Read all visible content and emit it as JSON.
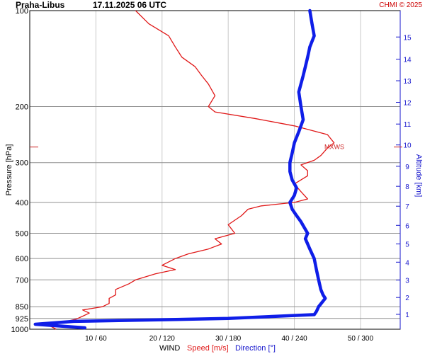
{
  "header": {
    "station": "Praha-Libus",
    "datetime": "17.11.2025 06 UTC",
    "copyright": "CHMI © 2025"
  },
  "colors": {
    "speed": "#e01818",
    "direction": "#0f1ee8",
    "altitude_axis": "#1515cc",
    "grid": "#c8c8c8",
    "pressure_grid": "#909090"
  },
  "labels": {
    "wind": "WIND",
    "speed": "Speed [m/s]",
    "direction": "Direction [°]",
    "pressure": "Pressure [hPa]",
    "altitude": "Altitude [km]",
    "mxws": "MXWS"
  },
  "chart_data": {
    "type": "line",
    "title": "Praha-Libus 17.11.2025 06 UTC",
    "y_axis": {
      "label": "Pressure [hPa]",
      "scale": "log",
      "range": [
        1000,
        100
      ],
      "ticks": [
        100,
        200,
        300,
        400,
        500,
        600,
        700,
        850,
        925,
        1000
      ]
    },
    "y2_axis": {
      "label": "Altitude [km]",
      "ticks": [
        1,
        2,
        3,
        4,
        5,
        6,
        7,
        8,
        9,
        10,
        11,
        12,
        13,
        14,
        15
      ],
      "tick_pressures": [
        898,
        795,
        701,
        616,
        540,
        472,
        411,
        356,
        308,
        264,
        227,
        194,
        166,
        142,
        121
      ]
    },
    "x_axis": {
      "label": "WIND",
      "speed_range": [
        0,
        56
      ],
      "direction_range": [
        0,
        336
      ],
      "tick_labels": [
        "10 / 60",
        "20 / 120",
        "30 / 180",
        "40 / 240",
        "50 / 300"
      ]
    },
    "grid": true,
    "mxws_pressure": 268,
    "series": [
      {
        "name": "Speed [m/s]",
        "units": "m/s",
        "points": [
          [
            1000,
            4
          ],
          [
            975,
            3
          ],
          [
            950,
            5
          ],
          [
            930,
            7
          ],
          [
            910,
            8
          ],
          [
            890,
            9
          ],
          [
            870,
            8
          ],
          [
            850,
            11
          ],
          [
            830,
            12
          ],
          [
            800,
            12
          ],
          [
            780,
            13
          ],
          [
            750,
            13
          ],
          [
            720,
            15
          ],
          [
            700,
            16
          ],
          [
            670,
            19
          ],
          [
            650,
            22
          ],
          [
            630,
            20
          ],
          [
            600,
            22
          ],
          [
            580,
            24
          ],
          [
            560,
            27
          ],
          [
            540,
            29
          ],
          [
            520,
            28
          ],
          [
            500,
            31
          ],
          [
            470,
            30
          ],
          [
            440,
            32
          ],
          [
            420,
            33
          ],
          [
            410,
            35
          ],
          [
            400,
            40
          ],
          [
            390,
            42
          ],
          [
            370,
            41
          ],
          [
            350,
            40
          ],
          [
            330,
            42
          ],
          [
            318,
            42
          ],
          [
            305,
            41
          ],
          [
            295,
            43
          ],
          [
            285,
            44
          ],
          [
            270,
            45
          ],
          [
            260,
            46
          ],
          [
            245,
            45
          ],
          [
            230,
            40
          ],
          [
            218,
            34
          ],
          [
            208,
            28
          ],
          [
            200,
            27
          ],
          [
            185,
            28
          ],
          [
            170,
            27
          ],
          [
            160,
            26
          ],
          [
            150,
            25
          ],
          [
            140,
            23
          ],
          [
            130,
            22
          ],
          [
            120,
            21
          ],
          [
            110,
            18
          ],
          [
            100,
            16
          ]
        ]
      },
      {
        "name": "Direction [°]",
        "units": "deg",
        "points": [
          [
            990,
            50
          ],
          [
            965,
            5
          ],
          [
            945,
            40
          ],
          [
            925,
            180
          ],
          [
            900,
            258
          ],
          [
            880,
            260
          ],
          [
            850,
            262
          ],
          [
            800,
            268
          ],
          [
            780,
            266
          ],
          [
            750,
            264
          ],
          [
            700,
            262
          ],
          [
            650,
            260
          ],
          [
            600,
            258
          ],
          [
            560,
            254
          ],
          [
            520,
            250
          ],
          [
            500,
            252
          ],
          [
            460,
            246
          ],
          [
            440,
            242
          ],
          [
            420,
            238
          ],
          [
            400,
            236
          ],
          [
            380,
            240
          ],
          [
            360,
            242
          ],
          [
            340,
            238
          ],
          [
            320,
            236
          ],
          [
            300,
            236
          ],
          [
            280,
            238
          ],
          [
            260,
            240
          ],
          [
            240,
            244
          ],
          [
            220,
            248
          ],
          [
            200,
            246
          ],
          [
            180,
            244
          ],
          [
            160,
            248
          ],
          [
            150,
            250
          ],
          [
            140,
            252
          ],
          [
            130,
            254
          ],
          [
            120,
            258
          ],
          [
            110,
            256
          ],
          [
            100,
            254
          ]
        ]
      }
    ]
  }
}
